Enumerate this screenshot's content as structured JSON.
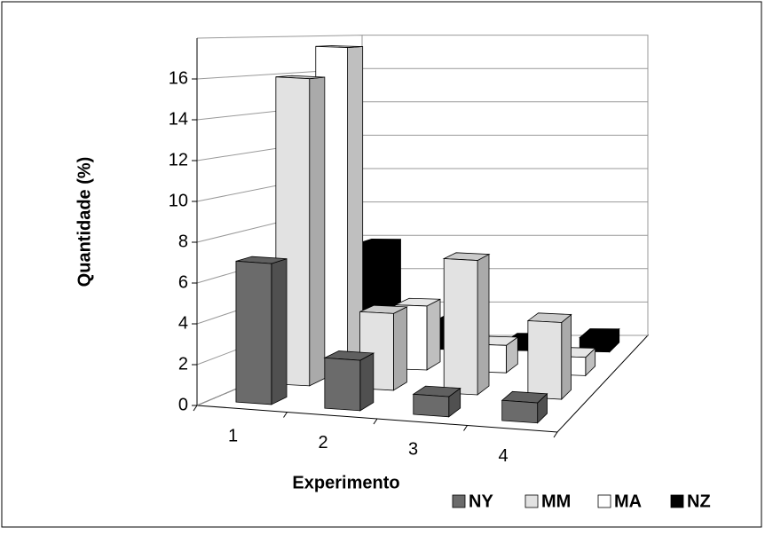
{
  "chart_data": {
    "type": "bar3d",
    "y_label": "Quantidade (%)",
    "x_label": "Experimento",
    "categories": [
      "1",
      "2",
      "3",
      "4"
    ],
    "series": [
      {
        "name": "NY",
        "color": "#6b6b6b",
        "values": [
          7,
          2.5,
          1,
          1
        ]
      },
      {
        "name": "MM",
        "color": "#e2e2e2",
        "values": [
          16,
          4,
          7,
          4
        ]
      },
      {
        "name": "MA",
        "color": "#ffffff",
        "values": [
          17.5,
          3.5,
          1.5,
          1
        ]
      },
      {
        "name": "NZ",
        "color": "#000000",
        "values": [
          6,
          1.5,
          0.5,
          0.8
        ]
      }
    ],
    "ylim": [
      0,
      18
    ],
    "yticks": [
      0,
      2,
      4,
      6,
      8,
      10,
      12,
      14,
      16
    ],
    "grid": true
  }
}
